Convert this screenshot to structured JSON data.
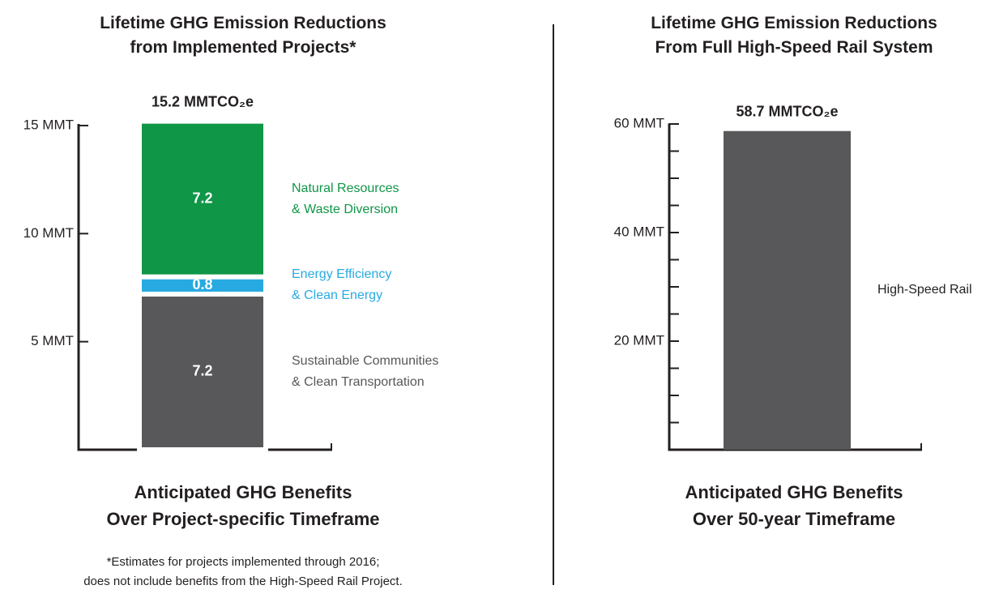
{
  "chart_data": [
    {
      "type": "stacked_bar",
      "title": "Lifetime GHG Emission Reductions\nfrom Implemented Projects*",
      "annotation": "15.2 MMTCO₂e",
      "xlabel": "Anticipated GHG Benefits\nOver Project-specific Timeframe",
      "note": "*Estimates for projects implemented through 2016;\ndoes not include benefits from the High-Speed Rail Project.",
      "categories": [
        null
      ],
      "series": [
        {
          "name": "Sustainable Communities\n& Clean Transportation",
          "color": "#58585a",
          "values": [
            7.2
          ]
        },
        {
          "name": "Energy Efficiency\n& Clean Energy",
          "color": "#27aae1",
          "values": [
            0.8
          ]
        },
        {
          "name": "Natural Resources\n& Waste Diversion",
          "color": "#0f9647",
          "values": [
            7.2
          ]
        }
      ],
      "ylim": [
        0,
        15.3
      ],
      "yticks": [
        {
          "value": 5,
          "label": "5 MMT"
        },
        {
          "value": 10,
          "label": "10 MMT"
        },
        {
          "value": 15,
          "label": "15 MMT"
        }
      ]
    },
    {
      "type": "bar",
      "title": "Lifetime GHG Emission Reductions\nFrom Full High-Speed Rail System",
      "annotation": "58.7 MMTCO₂e",
      "xlabel": "Anticipated GHG Benefits\nOver 50-year Timeframe",
      "categories": [
        null
      ],
      "series": [
        {
          "name": "High-Speed Rail",
          "color": "#58585a",
          "values": [
            58.7
          ]
        }
      ],
      "ylim": [
        0,
        61
      ],
      "yticks": [
        {
          "value": 20,
          "label": "20 MMT"
        },
        {
          "value": 40,
          "label": "40 MMT"
        },
        {
          "value": 60,
          "label": "60 MMT"
        }
      ],
      "minor_yticks": [
        5,
        10,
        15,
        25,
        30,
        35,
        45,
        50,
        55
      ]
    }
  ]
}
